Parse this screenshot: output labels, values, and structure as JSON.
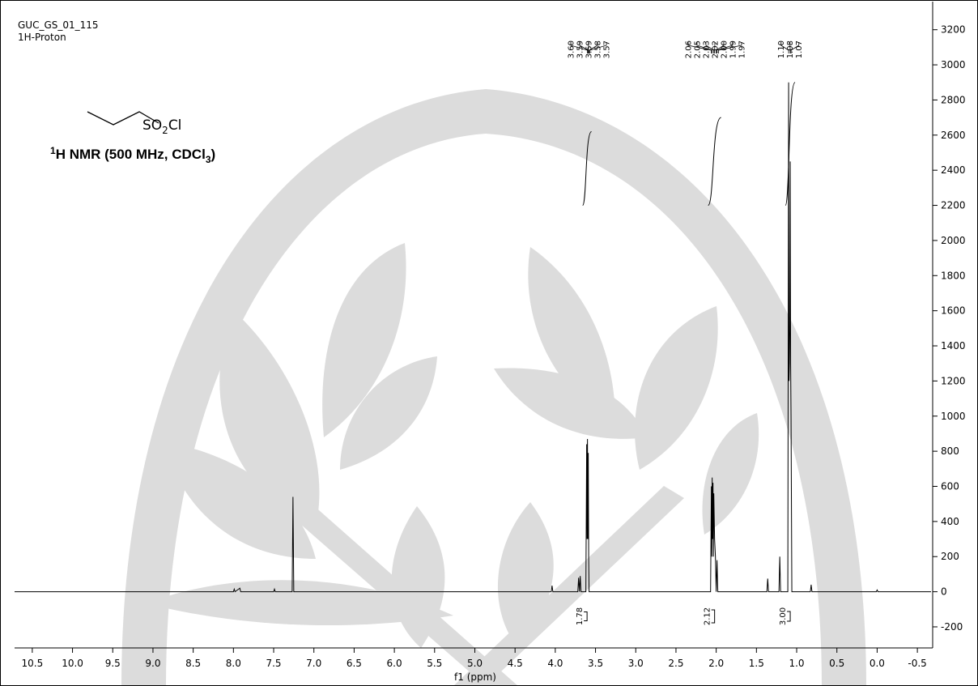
{
  "chart_data": {
    "type": "line",
    "title": "GUC_GS_01_115",
    "subtitle": "1H-Proton",
    "molecule_label": [
      "SO",
      "2",
      "Cl"
    ],
    "nmr_label": [
      "1",
      "H NMR (500 MHz, CDCl",
      "3",
      ")"
    ],
    "x_label": "f1 (ppm)",
    "color": "#000000",
    "xlim": [
      10.72,
      -0.67
    ],
    "xticks": [
      10.5,
      {
        "value": 10,
        "label": "10.0"
      },
      9.5,
      {
        "value": 9,
        "label": "9.0"
      },
      8.5,
      {
        "value": 8,
        "label": "8.0"
      },
      7.5,
      {
        "value": 7,
        "label": "7.0"
      },
      6.5,
      {
        "value": 6,
        "label": "6.0"
      },
      5.5,
      {
        "value": 5,
        "label": "5.0"
      },
      4.5,
      {
        "value": 4,
        "label": "4.0"
      },
      3.5,
      {
        "value": 3,
        "label": "3.0"
      },
      2.5,
      {
        "value": 2,
        "label": "2.0"
      },
      1.5,
      {
        "value": 1,
        "label": "1.0"
      },
      0.5,
      {
        "value": 0,
        "label": "0.0"
      },
      -0.5
    ],
    "ylim": [
      -320,
      3360
    ],
    "yticks": [
      -200,
      0,
      200,
      400,
      600,
      800,
      1000,
      1200,
      1400,
      1600,
      1800,
      2000,
      2200,
      2400,
      2600,
      2800,
      3000,
      3200
    ],
    "x": [
      10.72,
      8.0,
      7.99,
      7.98,
      7.92,
      7.91,
      7.9,
      7.5,
      7.49,
      7.48,
      7.27,
      7.26,
      7.25,
      4.05,
      4.04,
      4.03,
      3.72,
      3.71,
      3.7,
      3.69,
      3.68,
      3.62,
      3.61,
      3.605,
      3.6,
      3.595,
      3.59,
      3.585,
      3.58,
      2.07,
      2.06,
      2.055,
      2.05,
      2.045,
      2.04,
      2.035,
      2.03,
      2.02,
      2.01,
      2.0,
      1.99,
      1.98,
      1.37,
      1.36,
      1.35,
      1.22,
      1.21,
      1.2,
      1.11,
      1.1,
      1.095,
      1.09,
      1.085,
      1.08,
      1.075,
      1.07,
      1.06,
      0.83,
      0.82,
      0.81,
      0.01,
      0.0,
      -0.01,
      -0.67
    ],
    "values": [
      0,
      0,
      15,
      0,
      20,
      0,
      0,
      0,
      15,
      0,
      0,
      540,
      0,
      0,
      35,
      0,
      0,
      80,
      0,
      90,
      0,
      0,
      840,
      300,
      870,
      300,
      790,
      200,
      0,
      0,
      600,
      200,
      650,
      300,
      620,
      200,
      560,
      300,
      200,
      0,
      180,
      0,
      0,
      75,
      0,
      0,
      200,
      0,
      0,
      2900,
      1200,
      1300,
      1500,
      2450,
      1300,
      1000,
      0,
      0,
      40,
      0,
      0,
      10,
      0,
      0
    ],
    "peak_labels": [
      [
        {
          "value": 3.6,
          "label": "3.60"
        },
        {
          "value": 3.59,
          "label": "3.59"
        },
        {
          "value": 3.59,
          "label": "3.59"
        },
        {
          "value": 3.58,
          "label": "3.58"
        },
        {
          "value": 3.57,
          "label": "3.57"
        }
      ],
      [
        {
          "value": 2.06,
          "label": "2.06"
        },
        {
          "value": 2.05,
          "label": "2.05"
        },
        {
          "value": 2.03,
          "label": "2.03"
        },
        {
          "value": 2.02,
          "label": "2.02"
        },
        {
          "value": 2,
          "label": "2.00"
        },
        {
          "value": 1.99,
          "label": "1.99"
        },
        {
          "value": 1.97,
          "label": "1.97"
        }
      ],
      [
        {
          "value": 1.1,
          "label": "1.10"
        },
        {
          "value": 1.08,
          "label": "1.08"
        },
        {
          "value": 1.07,
          "label": "1.07"
        }
      ]
    ],
    "integrals": [
      {
        "integral": 1.78,
        "from": 3.66,
        "to": 3.55,
        "curve": [
          2200,
          2620
        ]
      },
      {
        "integral": 2.12,
        "from": 2.1,
        "to": 1.94,
        "curve": [
          2200,
          2700
        ]
      },
      {
        "integral": {
          "value": 3,
          "label": "3.00"
        },
        "from": 1.14,
        "to": 1.02,
        "curve": [
          2200,
          2900
        ]
      }
    ]
  }
}
